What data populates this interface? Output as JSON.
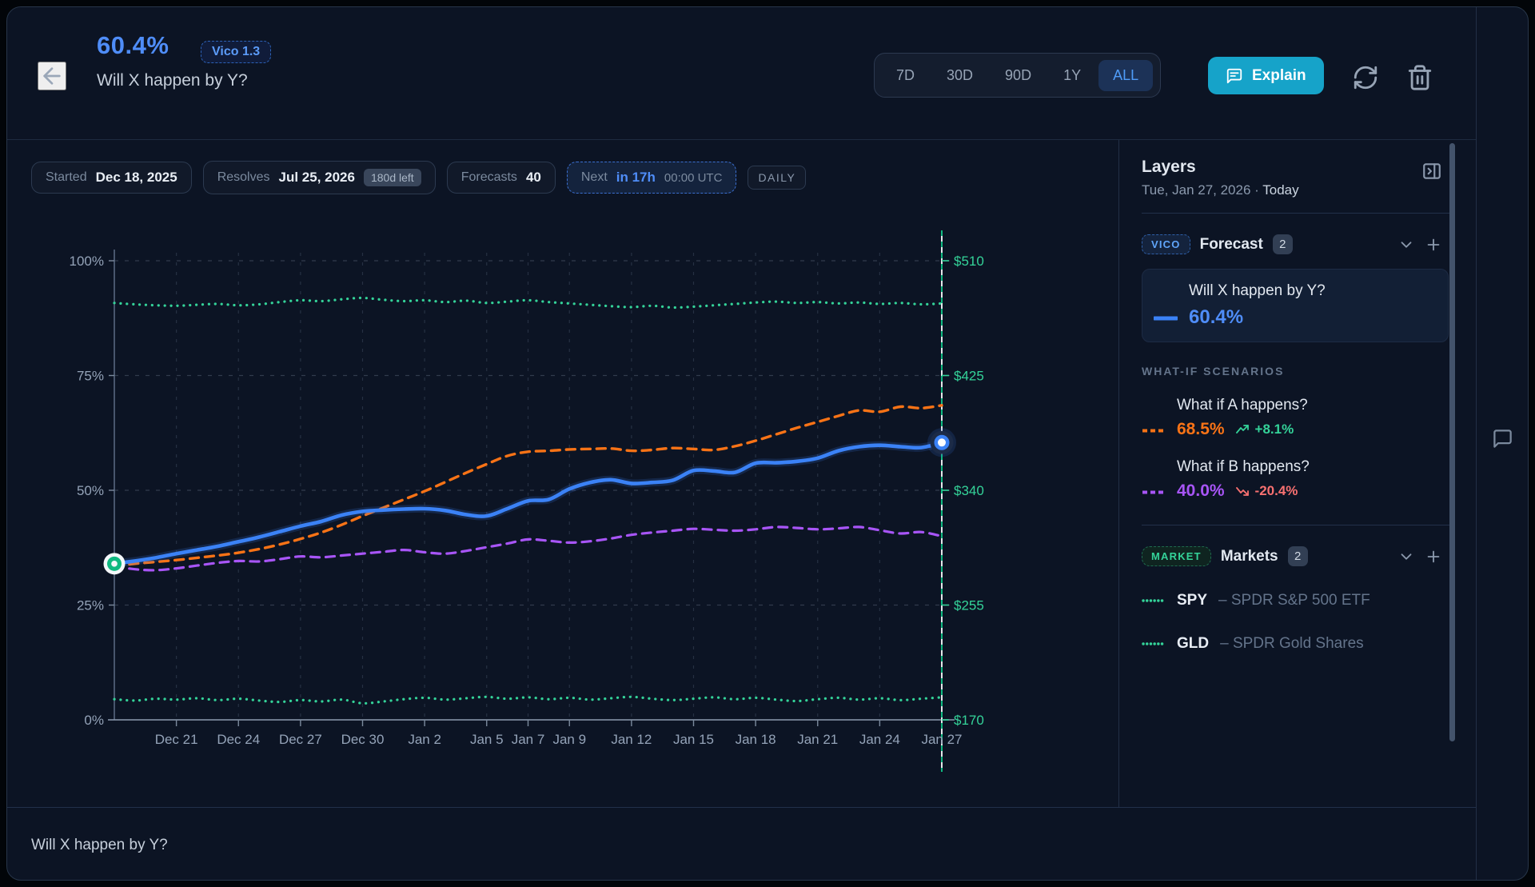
{
  "colors": {
    "accent_blue": "#4f8df8",
    "forecast_line": "#3b82f6",
    "scenario_a": "#f97316",
    "scenario_b": "#a855f7",
    "market_green": "#34d399",
    "delta_up": "#34d399",
    "delta_down": "#f87171",
    "explain_bg": "#16a3c9"
  },
  "header": {
    "probability": "60.4%",
    "model_badge": "Vico 1.3",
    "title": "Will X happen by Y?",
    "ranges": {
      "r7d": "7D",
      "r30d": "30D",
      "r90d": "90D",
      "r1y": "1Y",
      "rall": "ALL"
    },
    "active_range": "ALL",
    "explain_label": "Explain"
  },
  "badges": {
    "started_label": "Started",
    "started_value": "Dec 18, 2025",
    "resolves_label": "Resolves",
    "resolves_value": "Jul 25, 2026",
    "resolves_chip": "180d left",
    "forecasts_label": "Forecasts",
    "forecasts_value": "40",
    "next_label": "Next",
    "next_value": "in 17h",
    "next_time": "00:00 UTC",
    "frequency": "DAILY"
  },
  "sidebar": {
    "title": "Layers",
    "date": "Tue, Jan 27, 2026",
    "dot": "·",
    "today_label": "Today",
    "forecast_section": {
      "badge": "VICO",
      "label": "Forecast",
      "count": "2"
    },
    "forecast_card": {
      "title": "Will X happen by Y?",
      "value": "60.4%"
    },
    "scenarios_heading": "WHAT-IF SCENARIOS",
    "scenarios": [
      {
        "title": "What if A happens?",
        "value": "68.5%",
        "delta": "+8.1%",
        "direction": "up",
        "color": "#f97316",
        "delta_color": "#34d399"
      },
      {
        "title": "What if B happens?",
        "value": "40.0%",
        "delta": "-20.4%",
        "direction": "down",
        "color": "#a855f7",
        "delta_color": "#f87171"
      }
    ],
    "markets_section": {
      "badge": "MARKET",
      "label": "Markets",
      "count": "2"
    },
    "markets": [
      {
        "ticker": "SPY",
        "desc": "– SPDR S&P 500 ETF"
      },
      {
        "ticker": "GLD",
        "desc": "– SPDR Gold Shares"
      }
    ]
  },
  "footer": {
    "question": "Will X happen by Y?"
  },
  "chart_data": {
    "type": "line",
    "x_axis": {
      "start_date": "Dec 18, 2025",
      "days": 40,
      "ticks": [
        {
          "label": "Dec 21",
          "day": 3
        },
        {
          "label": "Dec 24",
          "day": 6
        },
        {
          "label": "Dec 27",
          "day": 9
        },
        {
          "label": "Dec 30",
          "day": 12
        },
        {
          "label": "Jan 2",
          "day": 15
        },
        {
          "label": "Jan 5",
          "day": 18
        },
        {
          "label": "Jan 7",
          "day": 20
        },
        {
          "label": "Jan 9",
          "day": 22
        },
        {
          "label": "Jan 12",
          "day": 25
        },
        {
          "label": "Jan 15",
          "day": 28
        },
        {
          "label": "Jan 18",
          "day": 31
        },
        {
          "label": "Jan 21",
          "day": 34
        },
        {
          "label": "Jan 24",
          "day": 37
        },
        {
          "label": "Jan 27",
          "day": 40
        }
      ]
    },
    "y_left": {
      "ticks": [
        {
          "label": "0%",
          "pct": 0
        },
        {
          "label": "25%",
          "pct": 25
        },
        {
          "label": "50%",
          "pct": 50
        },
        {
          "label": "75%",
          "pct": 75
        },
        {
          "label": "100%",
          "pct": 100
        }
      ]
    },
    "y_right": {
      "color": "#34d399",
      "ticks": [
        {
          "label": "$170",
          "pct": 0
        },
        {
          "label": "$255",
          "pct": 25
        },
        {
          "label": "$340",
          "pct": 50
        },
        {
          "label": "$425",
          "pct": 75
        },
        {
          "label": "$510",
          "pct": 100
        }
      ]
    },
    "today_line": {
      "day": 40,
      "colors": [
        "#10b981",
        "#e5e7eb"
      ]
    },
    "series": [
      {
        "name": "SPY",
        "style": "dotted",
        "color": "#34d399",
        "width": 3.2,
        "values": [
          90.8,
          90.5,
          90.3,
          90.2,
          90.4,
          90.6,
          90.3,
          90.5,
          91.0,
          91.4,
          91.2,
          91.6,
          91.9,
          91.5,
          91.2,
          91.4,
          91.0,
          91.3,
          90.8,
          91.1,
          91.4,
          91.0,
          90.7,
          90.4,
          90.1,
          89.9,
          90.2,
          89.8,
          90.0,
          90.3,
          90.6,
          90.9,
          91.1,
          90.8,
          91.0,
          90.7,
          90.9,
          90.6,
          90.8,
          90.5,
          90.7
        ]
      },
      {
        "name": "GLD",
        "style": "dotted",
        "color": "#34d399",
        "width": 3.2,
        "values": [
          4.5,
          4.2,
          4.6,
          4.4,
          4.7,
          4.3,
          4.6,
          4.2,
          3.9,
          4.3,
          4.0,
          4.4,
          3.6,
          4.0,
          4.5,
          4.8,
          4.4,
          4.7,
          5.0,
          4.6,
          4.9,
          4.5,
          4.8,
          4.4,
          4.7,
          5.0,
          4.6,
          4.3,
          4.6,
          4.9,
          4.5,
          4.8,
          4.4,
          4.1,
          4.5,
          4.8,
          4.4,
          4.7,
          4.3,
          4.6,
          4.9
        ]
      },
      {
        "name": "What if B happens?",
        "style": "dashed",
        "color": "#a855f7",
        "width": 3.2,
        "values": [
          33.5,
          32.8,
          32.6,
          33.0,
          33.6,
          34.2,
          34.6,
          34.5,
          35.0,
          35.6,
          35.4,
          35.8,
          36.2,
          36.6,
          37.0,
          36.5,
          36.2,
          36.8,
          37.6,
          38.4,
          39.3,
          39.0,
          38.6,
          38.9,
          39.5,
          40.3,
          40.8,
          41.2,
          41.6,
          41.4,
          41.2,
          41.5,
          42.0,
          41.8,
          41.5,
          41.7,
          42.0,
          41.3,
          40.6,
          40.9,
          40.0
        ]
      },
      {
        "name": "What if A happens?",
        "style": "dashed",
        "color": "#f97316",
        "width": 3.4,
        "values": [
          33.5,
          34.0,
          34.4,
          34.8,
          35.3,
          35.8,
          36.4,
          37.2,
          38.2,
          39.4,
          40.8,
          42.5,
          44.4,
          46.2,
          48.0,
          49.8,
          51.8,
          53.8,
          55.7,
          57.5,
          58.4,
          58.6,
          58.9,
          59.0,
          59.1,
          58.6,
          58.8,
          59.2,
          59.0,
          58.8,
          59.6,
          60.8,
          62.2,
          63.6,
          64.9,
          66.2,
          67.4,
          67.1,
          68.2,
          67.9,
          68.5
        ]
      },
      {
        "name": "Will X happen by Y?",
        "style": "solid",
        "color": "#3b82f6",
        "width": 4.6,
        "values": [
          34.0,
          34.6,
          35.3,
          36.2,
          37.0,
          37.8,
          38.8,
          39.8,
          41.0,
          42.2,
          43.2,
          44.6,
          45.4,
          45.7,
          45.9,
          46.0,
          45.6,
          44.7,
          44.4,
          46.0,
          47.7,
          48.0,
          50.3,
          51.7,
          52.3,
          51.5,
          51.7,
          52.2,
          54.3,
          54.2,
          53.9,
          55.9,
          56.0,
          56.3,
          57.0,
          58.6,
          59.5,
          59.8,
          59.5,
          59.3,
          60.4
        ]
      }
    ],
    "start_marker": {
      "day": 0,
      "value": 34.0,
      "color": "#10b981"
    },
    "end_marker": {
      "day": 40,
      "value": 60.4,
      "color": "#3b82f6"
    }
  }
}
